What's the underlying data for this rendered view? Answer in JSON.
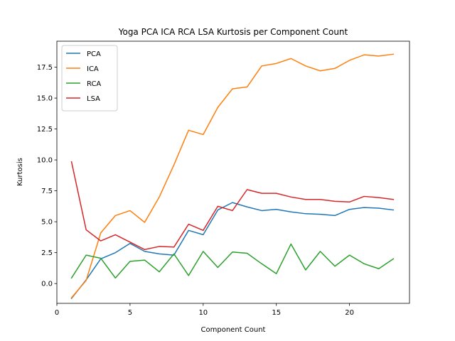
{
  "chart_data": {
    "type": "line",
    "title": "Yoga PCA ICA RCA LSA Kurtosis per Component Count",
    "xlabel": "Component Count",
    "ylabel": "Kurtosis",
    "xlim": [
      0,
      24.1
    ],
    "ylim": [
      -1.6,
      19.6
    ],
    "x_ticks": [
      0,
      5,
      10,
      15,
      20
    ],
    "y_ticks": [
      0.0,
      2.5,
      5.0,
      7.5,
      10.0,
      12.5,
      15.0,
      17.5
    ],
    "x_tick_labels": [
      "0",
      "5",
      "10",
      "15",
      "20"
    ],
    "y_tick_labels": [
      "0.0",
      "2.5",
      "5.0",
      "7.5",
      "10.0",
      "12.5",
      "15.0",
      "17.5"
    ],
    "legend_position": "top-left",
    "grid": false,
    "x": [
      1,
      2,
      3,
      4,
      5,
      6,
      7,
      8,
      9,
      10,
      11,
      12,
      13,
      14,
      15,
      16,
      17,
      18,
      19,
      20,
      21,
      22,
      23
    ],
    "series": [
      {
        "name": "PCA",
        "color": "#1f77b4",
        "values": [
          -1.2,
          0.3,
          2.0,
          2.5,
          3.25,
          2.6,
          2.4,
          2.3,
          4.3,
          3.95,
          5.95,
          6.55,
          6.2,
          5.9,
          6.0,
          5.8,
          5.65,
          5.6,
          5.5,
          6.0,
          6.15,
          6.1,
          5.95
        ]
      },
      {
        "name": "ICA",
        "color": "#ff7f0e",
        "values": [
          -1.15,
          0.25,
          4.1,
          5.5,
          5.9,
          4.95,
          7.0,
          9.6,
          12.4,
          12.05,
          14.25,
          15.75,
          15.9,
          17.6,
          17.8,
          18.2,
          17.6,
          17.2,
          17.4,
          18.05,
          18.5,
          18.4,
          18.55
        ]
      },
      {
        "name": "RCA",
        "color": "#2ca02c",
        "values": [
          0.45,
          2.3,
          2.05,
          0.45,
          1.8,
          1.9,
          0.95,
          2.4,
          0.65,
          2.6,
          1.3,
          2.55,
          2.45,
          1.6,
          0.8,
          3.2,
          1.1,
          2.6,
          1.4,
          2.3,
          1.6,
          1.2,
          2.0
        ]
      },
      {
        "name": "LSA",
        "color": "#d62728",
        "values": [
          9.85,
          4.35,
          3.45,
          3.95,
          3.35,
          2.75,
          3.0,
          2.95,
          4.8,
          4.3,
          6.25,
          5.9,
          7.6,
          7.3,
          7.3,
          7.0,
          6.8,
          6.8,
          6.65,
          6.6,
          7.05,
          6.95,
          6.8
        ]
      }
    ]
  }
}
